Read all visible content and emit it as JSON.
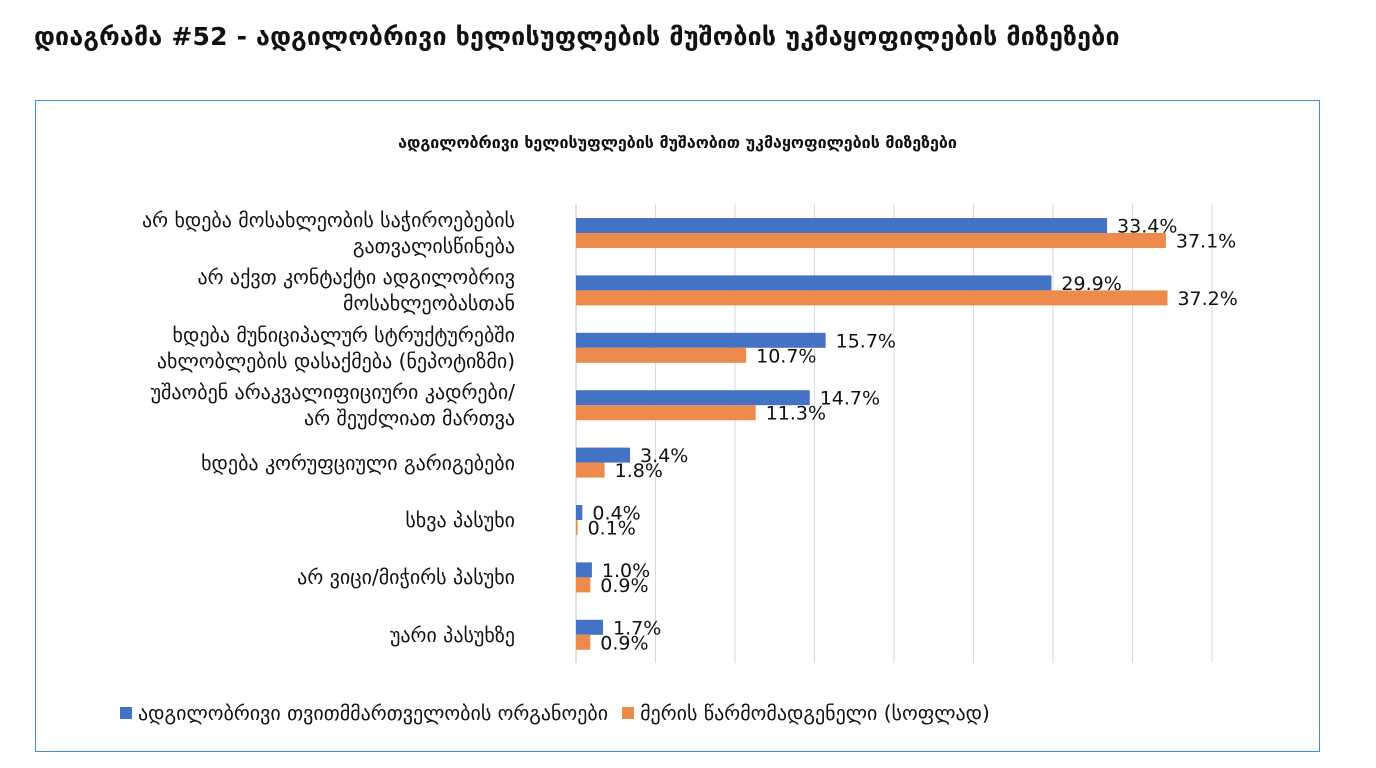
{
  "page_title": "დიაგრამა #52 - ადგილობრივი ხელისუფლების მუშობის უკმაყოფილების მიზეზები",
  "chart_data": {
    "type": "bar",
    "orientation": "horizontal",
    "title": "ადგილობრივი ხელისუფლების მუშაობით უკმაყოფილების მიზეზები",
    "categories": [
      [
        "არ ხდება მოსახლეობის საჭიროებების",
        "გათვალისწინება"
      ],
      [
        "არ აქვთ კონტაქტი ადგილობრივ",
        "მოსახლეობასთან"
      ],
      [
        "ხდება მუნიციპალურ სტრუქტურებში",
        "ახლობლების დასაქმება (ნეპოტიზმი)"
      ],
      [
        "უშაობენ არაკვალიფიციური კადრები/",
        "არ შეუძლიათ მართვა"
      ],
      [
        "ხდება კორუფციული გარიგებები"
      ],
      [
        "სხვა პასუხი"
      ],
      [
        "არ ვიცი/მიჭირს პასუხი"
      ],
      [
        "უარი პასუხზე"
      ]
    ],
    "series": [
      {
        "name": "ადგილობრივი თვითმმართველობის ორგანოები",
        "color": "#4472c4",
        "values": [
          33.4,
          29.9,
          15.7,
          14.7,
          3.4,
          0.4,
          1.0,
          1.7
        ],
        "labels": [
          "33.4%",
          "29.9%",
          "15.7%",
          "14.7%",
          "3.4%",
          "0.4%",
          "1.0%",
          "1.7%"
        ]
      },
      {
        "name": "მერის წარმომადგენელი (სოფლად)",
        "color": "#ed8a4c",
        "values": [
          37.1,
          37.2,
          10.7,
          11.3,
          1.8,
          0.1,
          0.9,
          0.9
        ],
        "labels": [
          "37.1%",
          "37.2%",
          "10.7%",
          "11.3%",
          "1.8%",
          "0.1%",
          "0.9%",
          "0.9%"
        ]
      }
    ],
    "xlim": [
      0,
      40
    ],
    "grid": true,
    "legend_position": "bottom"
  }
}
